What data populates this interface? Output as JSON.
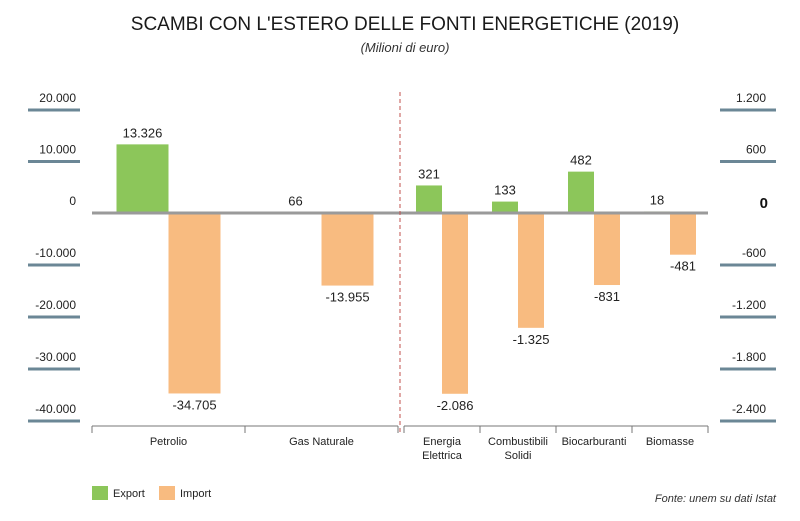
{
  "chart_data": {
    "type": "bar",
    "title": "SCAMBI CON L'ESTERO DELLE FONTI ENERGETICHE (2019)",
    "subtitle": "(Milioni di euro)",
    "source": "Fonte: unem su dati Istat",
    "legend": [
      {
        "name": "Export",
        "color": "#8cc65a"
      },
      {
        "name": "Import",
        "color": "#f8bb80"
      }
    ],
    "panels": [
      {
        "axis": "left",
        "ylim": [
          -40000,
          20000
        ],
        "ticks": [
          {
            "value": 20000,
            "label": "20.000"
          },
          {
            "value": 10000,
            "label": "10.000"
          },
          {
            "value": 0,
            "label": "0"
          },
          {
            "value": -10000,
            "label": "-10.000"
          },
          {
            "value": -20000,
            "label": "-20.000"
          },
          {
            "value": -30000,
            "label": "-30.000"
          },
          {
            "value": -40000,
            "label": "-40.000"
          }
        ],
        "categories": [
          [
            "Petrolio"
          ],
          [
            "Gas Naturale"
          ]
        ],
        "series": [
          {
            "name": "Export",
            "values": [
              13326,
              66
            ],
            "labels": [
              "13.326",
              "66"
            ]
          },
          {
            "name": "Import",
            "values": [
              -34705,
              -13955
            ],
            "labels": [
              "-34.705",
              "-13.955"
            ]
          }
        ]
      },
      {
        "axis": "right",
        "ylim": [
          -2400,
          1200
        ],
        "ticks": [
          {
            "value": 1200,
            "label": "1.200"
          },
          {
            "value": 600,
            "label": "600"
          },
          {
            "value": 0,
            "label": "0"
          },
          {
            "value": -600,
            "label": "-600"
          },
          {
            "value": -1200,
            "label": "-1.200"
          },
          {
            "value": -1800,
            "label": "-1.800"
          },
          {
            "value": -2400,
            "label": "-2.400"
          }
        ],
        "categories": [
          [
            "Energia",
            "Elettrica"
          ],
          [
            "Combustibili",
            "Solidi"
          ],
          [
            "Biocarburanti"
          ],
          [
            "Biomasse"
          ]
        ],
        "series": [
          {
            "name": "Export",
            "values": [
              321,
              133,
              482,
              18
            ],
            "labels": [
              "321",
              "133",
              "482",
              "18"
            ]
          },
          {
            "name": "Import",
            "values": [
              -2086,
              -1325,
              -831,
              -481
            ],
            "labels": [
              "-2.086",
              "-1.325",
              "-831",
              "-481"
            ]
          }
        ]
      }
    ]
  }
}
